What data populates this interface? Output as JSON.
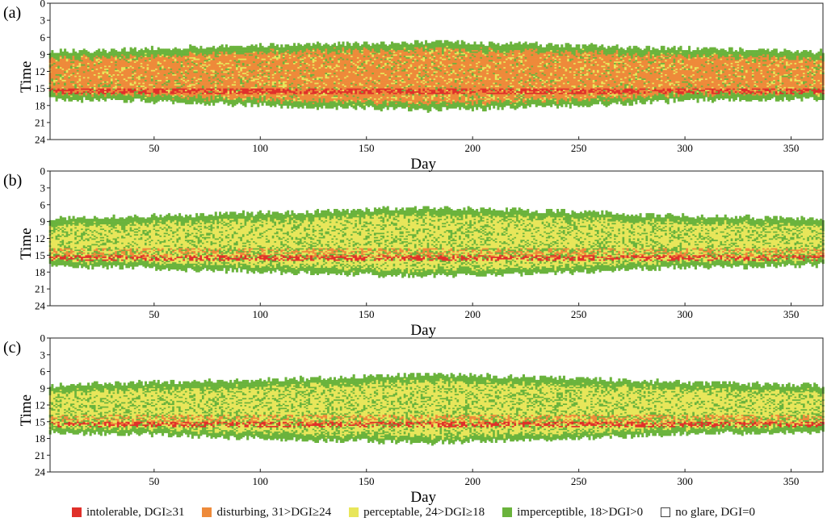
{
  "chart_data": [
    {
      "panel": "(a)",
      "type": "heatmap",
      "xlabel": "Day",
      "ylabel": "Time",
      "xlim": [
        1,
        365
      ],
      "ylim": [
        0,
        24
      ],
      "xticks": [
        50,
        100,
        150,
        200,
        250,
        300,
        350
      ],
      "yticks": [
        0,
        3,
        6,
        9,
        12,
        15,
        18,
        21,
        24
      ],
      "daylight_start_hour": [
        {
          "day": 1,
          "hour": 8.6
        },
        {
          "day": 60,
          "hour": 8.0
        },
        {
          "day": 130,
          "hour": 7.3
        },
        {
          "day": 180,
          "hour": 7.0
        },
        {
          "day": 240,
          "hour": 7.5
        },
        {
          "day": 300,
          "hour": 8.1
        },
        {
          "day": 365,
          "hour": 8.6
        }
      ],
      "daylight_end_hour": [
        {
          "day": 1,
          "hour": 16.7
        },
        {
          "day": 60,
          "hour": 17.3
        },
        {
          "day": 130,
          "hour": 18.2
        },
        {
          "day": 180,
          "hour": 18.6
        },
        {
          "day": 240,
          "hour": 18.0
        },
        {
          "day": 300,
          "hour": 17.0
        },
        {
          "day": 365,
          "hour": 16.6
        }
      ],
      "dominant_level_by_period": [
        {
          "days": [
            1,
            135
          ],
          "level": "disturbing"
        },
        {
          "days": [
            136,
            220
          ],
          "level": "disturbing"
        },
        {
          "days": [
            221,
            365
          ],
          "level": "disturbing"
        }
      ],
      "intolerable_band_hours": [
        14.8,
        16.0
      ]
    },
    {
      "panel": "(b)",
      "type": "heatmap",
      "xlabel": "Day",
      "ylabel": "Time",
      "xlim": [
        1,
        365
      ],
      "ylim": [
        0,
        24
      ],
      "xticks": [
        50,
        100,
        150,
        200,
        250,
        300,
        350
      ],
      "yticks": [
        0,
        3,
        6,
        9,
        12,
        15,
        18,
        21,
        24
      ],
      "daylight_start_hour": [
        {
          "day": 1,
          "hour": 8.6
        },
        {
          "day": 60,
          "hour": 8.0
        },
        {
          "day": 130,
          "hour": 7.3
        },
        {
          "day": 180,
          "hour": 6.6
        },
        {
          "day": 240,
          "hour": 7.3
        },
        {
          "day": 300,
          "hour": 8.1
        },
        {
          "day": 365,
          "hour": 8.6
        }
      ],
      "daylight_end_hour": [
        {
          "day": 1,
          "hour": 16.8
        },
        {
          "day": 60,
          "hour": 17.3
        },
        {
          "day": 130,
          "hour": 18.2
        },
        {
          "day": 180,
          "hour": 18.6
        },
        {
          "day": 240,
          "hour": 18.0
        },
        {
          "day": 300,
          "hour": 17.0
        },
        {
          "day": 365,
          "hour": 16.6
        }
      ],
      "dominant_level_by_period": [
        {
          "days": [
            1,
            365
          ],
          "level": "perceptable"
        }
      ],
      "intolerable_band_hours": [
        15.0,
        16.0
      ]
    },
    {
      "panel": "(c)",
      "type": "heatmap",
      "xlabel": "Day",
      "ylabel": "Time",
      "xlim": [
        1,
        365
      ],
      "ylim": [
        0,
        24
      ],
      "xticks": [
        50,
        100,
        150,
        200,
        250,
        300,
        350
      ],
      "yticks": [
        0,
        3,
        6,
        9,
        12,
        15,
        18,
        21,
        24
      ],
      "daylight_start_hour": [
        {
          "day": 1,
          "hour": 8.6
        },
        {
          "day": 60,
          "hour": 8.0
        },
        {
          "day": 130,
          "hour": 7.3
        },
        {
          "day": 180,
          "hour": 6.6
        },
        {
          "day": 240,
          "hour": 7.3
        },
        {
          "day": 300,
          "hour": 8.1
        },
        {
          "day": 365,
          "hour": 8.6
        }
      ],
      "daylight_end_hour": [
        {
          "day": 1,
          "hour": 16.8
        },
        {
          "day": 60,
          "hour": 17.3
        },
        {
          "day": 130,
          "hour": 18.2
        },
        {
          "day": 180,
          "hour": 18.6
        },
        {
          "day": 240,
          "hour": 18.0
        },
        {
          "day": 300,
          "hour": 17.0
        },
        {
          "day": 365,
          "hour": 16.6
        }
      ],
      "dominant_level_by_period": [
        {
          "days": [
            1,
            365
          ],
          "level": "perceptable"
        }
      ],
      "intolerable_band_hours": [
        14.8,
        16.0
      ]
    }
  ],
  "legend": [
    {
      "key": "intolerable",
      "label": "intolerable, DGI≥31",
      "color": "#e0302a"
    },
    {
      "key": "disturbing",
      "label": "disturbing, 31>DGI≥24",
      "color": "#ee8a3a"
    },
    {
      "key": "perceptable",
      "label": "perceptable, 24>DGI≥18",
      "color": "#e8e65a"
    },
    {
      "key": "imperceptible",
      "label": "imperceptible, 18>DGI>0",
      "color": "#6ab33c"
    },
    {
      "key": "none",
      "label": "no glare, DGI=0",
      "color": "#ffffff"
    }
  ]
}
